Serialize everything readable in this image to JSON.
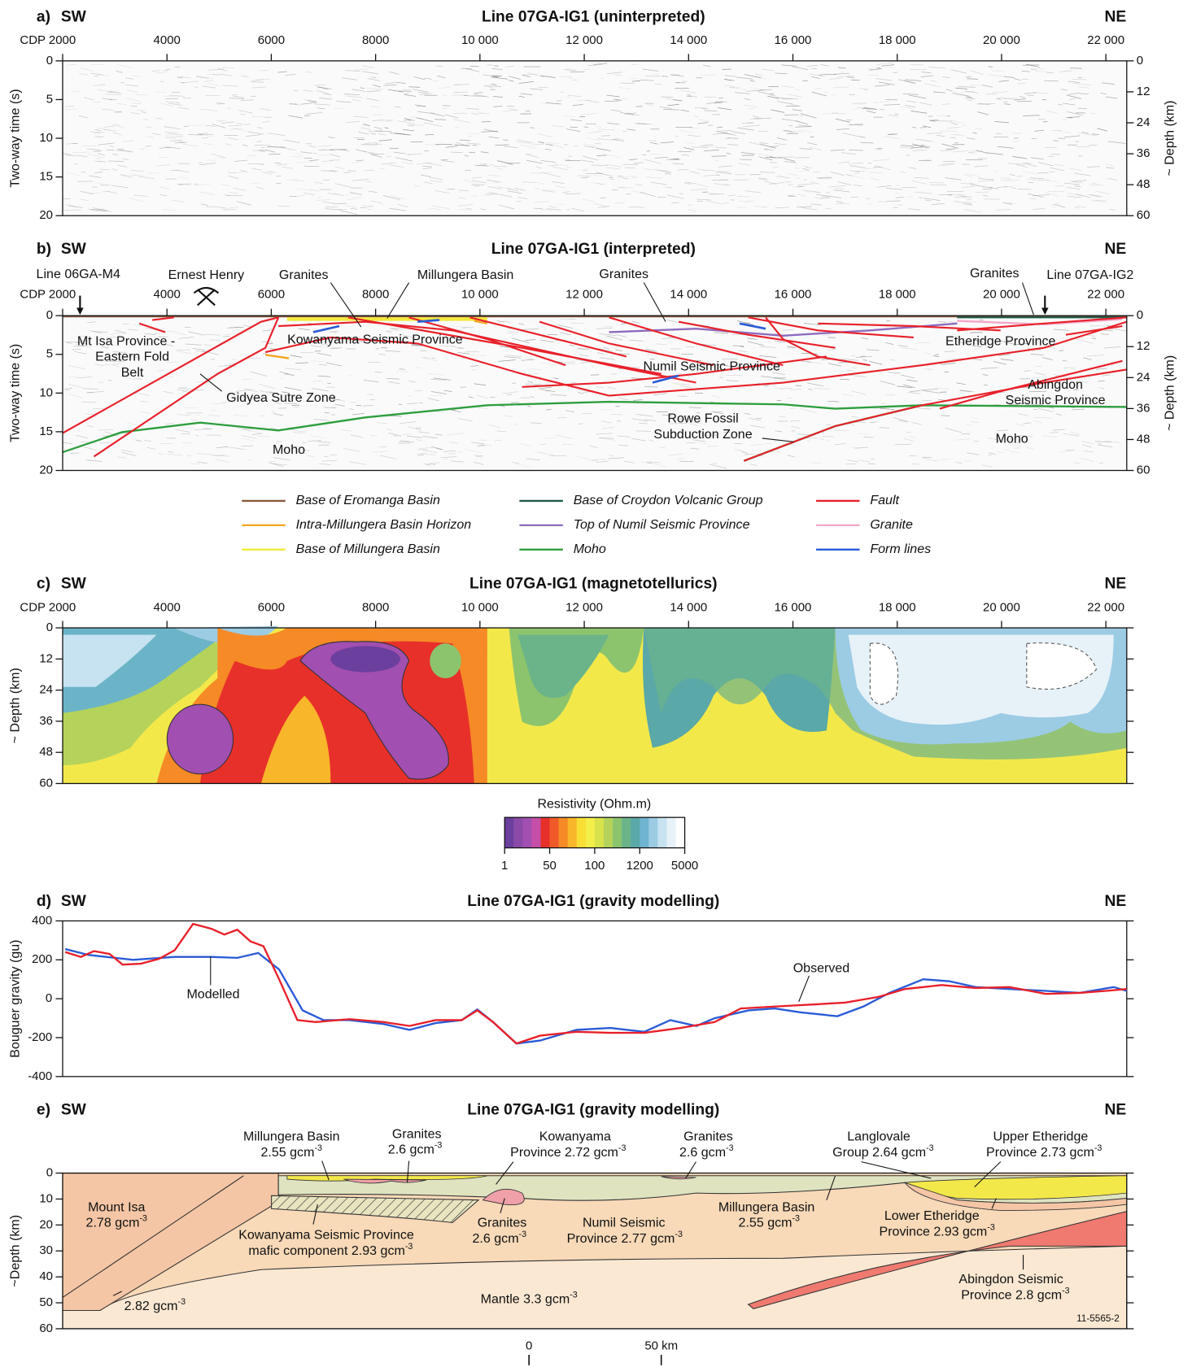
{
  "cdp_axis": {
    "lim": [
      2000,
      22400
    ],
    "ticks": [
      {
        "value": 2000,
        "label": "CDP 2000"
      },
      4000,
      6000,
      8000,
      {
        "value": 10000,
        "label": "10 000"
      },
      {
        "value": 12000,
        "label": "12 000"
      },
      {
        "value": 14000,
        "label": "14 000"
      },
      {
        "value": 16000,
        "label": "16 000"
      },
      {
        "value": 18000,
        "label": "18 000"
      },
      {
        "value": 20000,
        "label": "20 000"
      },
      {
        "value": 22000,
        "label": "22 000"
      }
    ]
  },
  "time_axis": {
    "lim": [
      0,
      20
    ],
    "ticks": [
      0,
      5,
      10,
      15,
      20
    ]
  },
  "depth_axis": {
    "lim": [
      0,
      60
    ],
    "ticks": [
      0,
      12,
      24,
      36,
      48,
      60
    ]
  },
  "panel_a": {
    "letter": "a)",
    "sw": "SW",
    "ne": "NE",
    "title": "Line 07GA-IG1 (uninterpreted)",
    "y_label": "Two-way time (s)",
    "y2_label": "~ Depth (km)"
  },
  "panel_b": {
    "letter": "b)",
    "sw": "SW",
    "ne": "NE",
    "title": "Line 07GA-IG1 (interpreted)",
    "y_label": "Two-way time (s)",
    "y2_label": "~ Depth (km)",
    "labels": [
      "Line 06GA-M4",
      "Ernest Henry",
      "Granites",
      "Millungera  Basin",
      "Granites",
      "Granites",
      "Line 07GA-IG2",
      "Mt Isa Province -",
      "Eastern Fold",
      "Belt",
      "Kowanyama Seismic Province",
      "Etheridge Province",
      "Numil Seismic Province",
      "Abingdon",
      "Seismic Province",
      "Gidyea Sutre Zone",
      "Rowe Fossil",
      "Subduction Zone",
      "Moho",
      "Moho"
    ],
    "legend": [
      {
        "name": "Base of Eromanga Basin",
        "color": "#8b5a3c"
      },
      {
        "name": "Intra-Millungera Basin Horizon",
        "color": "#f5a623"
      },
      {
        "name": "Base of Millungera Basin",
        "color": "#f2ea3a"
      },
      {
        "name": "Base of Croydon Volcanic Group",
        "color": "#1f5a4a"
      },
      {
        "name": "Top of Numil Seismic Province",
        "color": "#8e6bbf"
      },
      {
        "name": "Moho",
        "color": "#2e9e3e"
      },
      {
        "name": "Fault",
        "color": "#e8202a"
      },
      {
        "name": "Granite",
        "color": "#f4a6c8"
      },
      {
        "name": "Form lines",
        "color": "#2a5bd7"
      }
    ]
  },
  "panel_c": {
    "letter": "c)",
    "sw": "SW",
    "ne": "NE",
    "title": "Line 07GA-IG1 (magnetotellurics)",
    "y_label": "~ Depth (km)",
    "colorbar_title": "Resistivity (Ohm.m)",
    "colorbar_ticks": [
      1,
      50,
      100,
      1200,
      5000
    ],
    "colorbar_colors": [
      "#6b3f9e",
      "#8b4aa8",
      "#a14fb0",
      "#c54fa8",
      "#e8302a",
      "#f05a28",
      "#f58a26",
      "#f8b62a",
      "#f8de35",
      "#f3ee4a",
      "#d8e24a",
      "#b5d35a",
      "#8cc46e",
      "#6bb48a",
      "#5aa8a8",
      "#6fb4d0",
      "#9ccbe4",
      "#c7e2f0",
      "#e6f2f8",
      "#ffffff"
    ]
  },
  "chart_data": {
    "type": "line",
    "letter": "d)",
    "sw": "SW",
    "ne": "NE",
    "title": "Line 07GA-IG1 (gravity modelling)",
    "y_label": "Bouguer gravity (gu)",
    "xlim": [
      2000,
      22400
    ],
    "ylim": [
      -400,
      400
    ],
    "yticks": [
      400,
      200,
      0,
      -200,
      -400
    ],
    "series": [
      {
        "name": "Observed",
        "color": "#e8202a",
        "x": [
          2050,
          2350,
          2600,
          2900,
          3150,
          3500,
          3850,
          4150,
          4500,
          4850,
          5100,
          5350,
          5600,
          5850,
          6150,
          6500,
          6850,
          7500,
          8150,
          8650,
          9150,
          9650,
          9950,
          10250,
          10700,
          11150,
          11850,
          12500,
          13150,
          13850,
          14500,
          15000,
          15650,
          16350,
          17000,
          17650,
          18150,
          18850,
          19500,
          20150,
          20850,
          21500,
          22000,
          22400
        ],
        "values": [
          240,
          215,
          245,
          230,
          175,
          180,
          205,
          250,
          385,
          360,
          330,
          355,
          295,
          270,
          100,
          -110,
          -120,
          -105,
          -120,
          -140,
          -110,
          -110,
          -60,
          -120,
          -230,
          -190,
          -170,
          -175,
          -175,
          -150,
          -120,
          -50,
          -40,
          -30,
          -20,
          10,
          50,
          70,
          55,
          60,
          25,
          30,
          40,
          50
        ]
      },
      {
        "name": "Modelled",
        "color": "#2a5bd7",
        "x": [
          2050,
          2500,
          3350,
          4150,
          4850,
          5350,
          5750,
          6150,
          6600,
          7000,
          7500,
          8150,
          8650,
          9150,
          9650,
          9950,
          10250,
          10700,
          11150,
          11850,
          12500,
          13150,
          13650,
          14150,
          14500,
          15150,
          15650,
          16150,
          16850,
          17350,
          17850,
          18500,
          19000,
          19500,
          20150,
          20850,
          21500,
          22150,
          22400
        ],
        "values": [
          255,
          225,
          200,
          215,
          215,
          210,
          235,
          150,
          -60,
          -110,
          -110,
          -130,
          -160,
          -125,
          -110,
          -55,
          -120,
          -230,
          -215,
          -160,
          -150,
          -170,
          -110,
          -140,
          -100,
          -60,
          -50,
          -70,
          -90,
          -40,
          30,
          100,
          90,
          60,
          50,
          40,
          30,
          60,
          40
        ]
      }
    ]
  },
  "panel_e": {
    "letter": "e)",
    "sw": "SW",
    "ne": "NE",
    "title": "Line 07GA-IG1 (gravity modelling)",
    "y_label": "~Depth (km)",
    "depth_lim": [
      0,
      60
    ],
    "depth_ticks": [
      0,
      10,
      20,
      30,
      40,
      50,
      60
    ],
    "labels": [
      [
        "Millungera Basin"
      ],
      [
        "2.55 gcm",
        "-3"
      ],
      [
        "Granites"
      ],
      [
        "2.6 gcm",
        "-3"
      ],
      [
        "Kowanyama"
      ],
      [
        "Province 2.72 gcm",
        "-3"
      ],
      [
        "Granites"
      ],
      [
        "2.6 gcm",
        "-3"
      ],
      [
        "Langlovale"
      ],
      [
        "Group 2.64 gcm",
        "-3"
      ],
      [
        "Upper Etheridge"
      ],
      [
        "Province 2.73 gcm",
        "-3"
      ],
      [
        "Mount Isa"
      ],
      [
        "2.78 gcm",
        "-3"
      ],
      [
        "Kowanyama Seismic Province"
      ],
      [
        "mafic component 2.93 gcm",
        "-3"
      ],
      [
        "Granites"
      ],
      [
        "2.6 gcm",
        "-3"
      ],
      [
        "Numil Seismic"
      ],
      [
        "Province 2.77 gcm",
        "-3"
      ],
      [
        "Millungera Basin"
      ],
      [
        "2.55 gcm",
        "-3"
      ],
      [
        "Lower Etheridge"
      ],
      [
        "Province 2.93 gcm",
        "-3"
      ],
      [
        "2.82 gcm",
        "-3"
      ],
      [
        "Mantle 3.3 gcm",
        "-3"
      ],
      [
        "Abingdon Seismic"
      ],
      [
        "Province 2.8 gcm",
        "-3"
      ],
      [
        "11-5565-2"
      ]
    ],
    "scale_bar": [
      "0",
      "50 km"
    ]
  }
}
